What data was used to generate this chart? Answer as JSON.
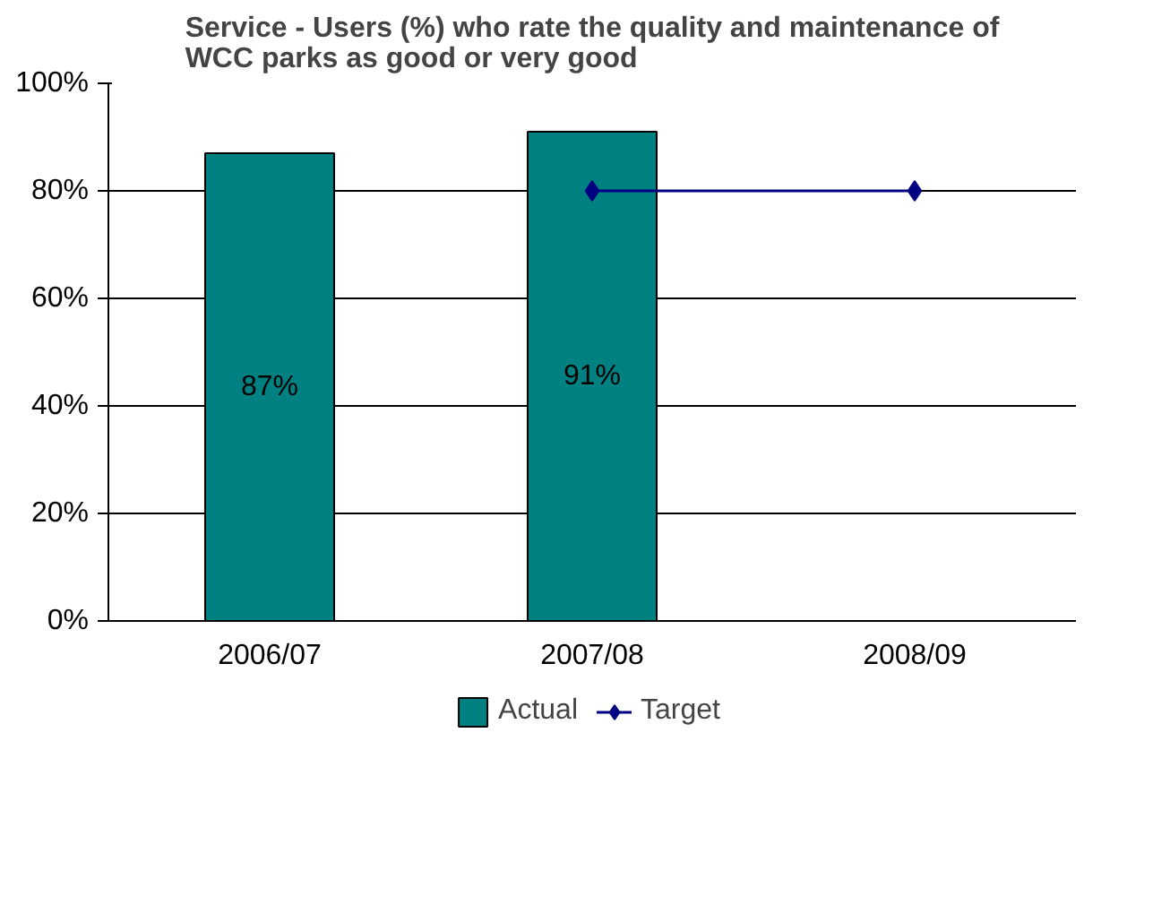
{
  "chart_data": {
    "type": "bar",
    "title": "Service - Users (%) who rate the quality and maintenance of WCC parks as good or very good",
    "categories": [
      "2006/07",
      "2007/08",
      "2008/09"
    ],
    "series": [
      {
        "name": "Actual",
        "color": "#008080",
        "values": [
          87,
          91,
          null
        ],
        "value_labels": [
          "87%",
          "91%",
          null
        ]
      },
      {
        "name": "Target",
        "type": "line",
        "color": "#000080",
        "values": [
          null,
          80,
          80
        ],
        "marker": "diamond"
      }
    ],
    "ylim": [
      0,
      100
    ],
    "yticks": [
      {
        "value": 0,
        "label": "0%"
      },
      {
        "value": 20,
        "label": "20%"
      },
      {
        "value": 40,
        "label": "40%"
      },
      {
        "value": 60,
        "label": "60%"
      },
      {
        "value": 80,
        "label": "80%"
      },
      {
        "value": 100,
        "label": "100%"
      }
    ],
    "grid": "y",
    "legend": "bottom"
  }
}
